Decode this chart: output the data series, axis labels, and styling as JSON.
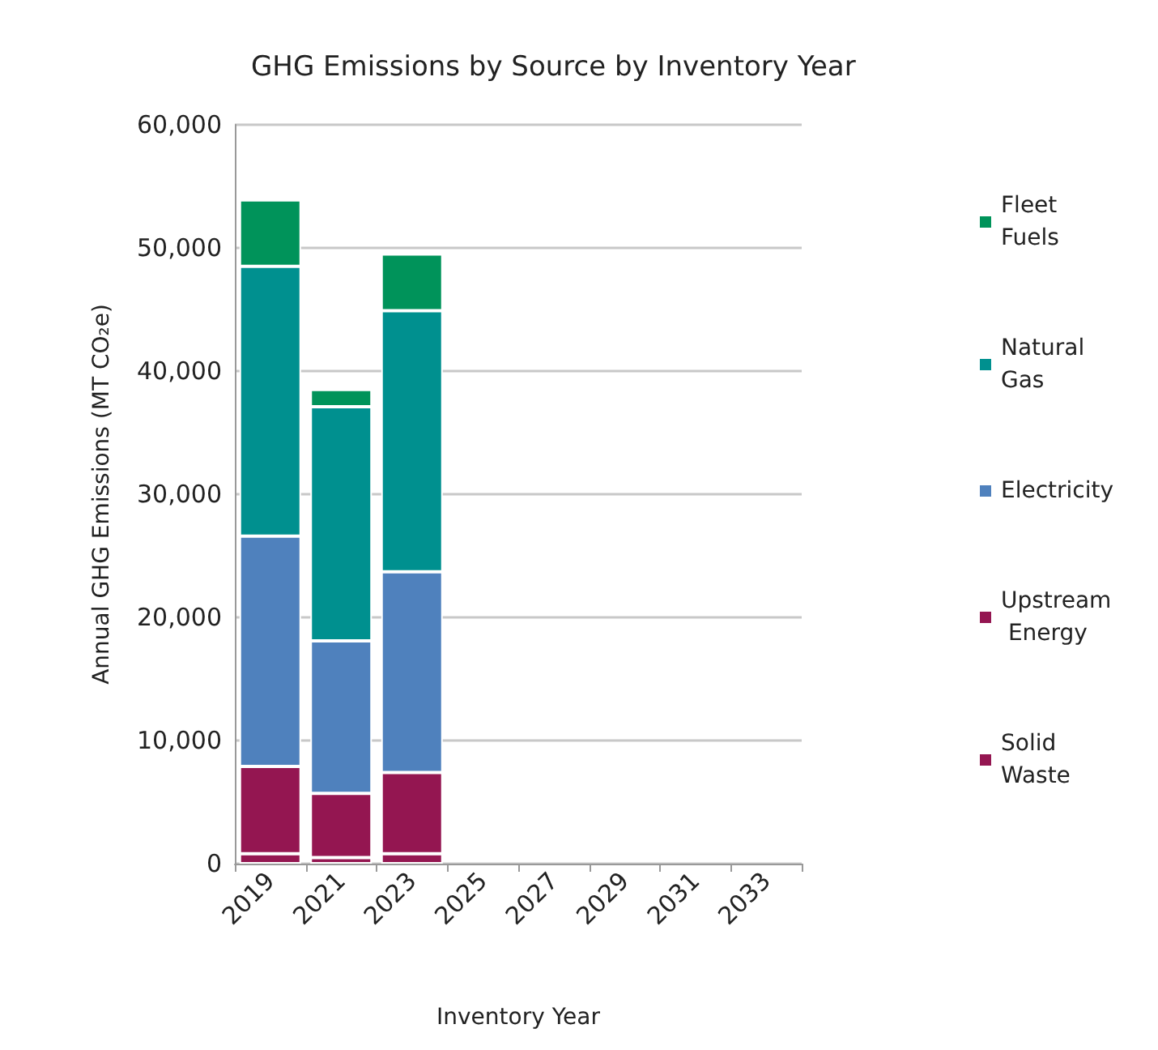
{
  "chart_data": {
    "type": "bar",
    "title": "GHG Emissions by Source by Inventory Year",
    "xlabel": "Inventory Year",
    "ylabel": "Annual GHG Emissions (MT CO₂e)",
    "categories": [
      "2019",
      "2021",
      "2023",
      "2025",
      "2027",
      "2029",
      "2031",
      "2033"
    ],
    "stacked": true,
    "series": [
      {
        "name": "Solid Waste",
        "color": "#941651",
        "values": [
          800,
          500,
          800,
          null,
          null,
          null,
          null,
          null
        ]
      },
      {
        "name": "Upstream Energy",
        "color": "#941651",
        "values": [
          7100,
          5200,
          6600,
          null,
          null,
          null,
          null,
          null
        ]
      },
      {
        "name": "Electricity",
        "color": "#4f81bd",
        "values": [
          18700,
          12400,
          16300,
          null,
          null,
          null,
          null,
          null
        ]
      },
      {
        "name": "Natural Gas",
        "color": "#00908f",
        "values": [
          21900,
          19000,
          21200,
          null,
          null,
          null,
          null,
          null
        ]
      },
      {
        "name": "Fleet Fuels",
        "color": "#00935a",
        "values": [
          5400,
          1400,
          4600,
          null,
          null,
          null,
          null,
          null
        ]
      }
    ],
    "ylim": [
      0,
      60000
    ],
    "yticks": [
      0,
      {
        "value": 10000,
        "label": "10,000"
      },
      {
        "value": 20000,
        "label": "20,000"
      },
      {
        "value": 30000,
        "label": "30,000"
      },
      {
        "value": 40000,
        "label": "40,000"
      },
      {
        "value": 50000,
        "label": "50,000"
      },
      {
        "value": 60000,
        "label": "60,000"
      }
    ],
    "grid": "y",
    "legend": "right"
  }
}
